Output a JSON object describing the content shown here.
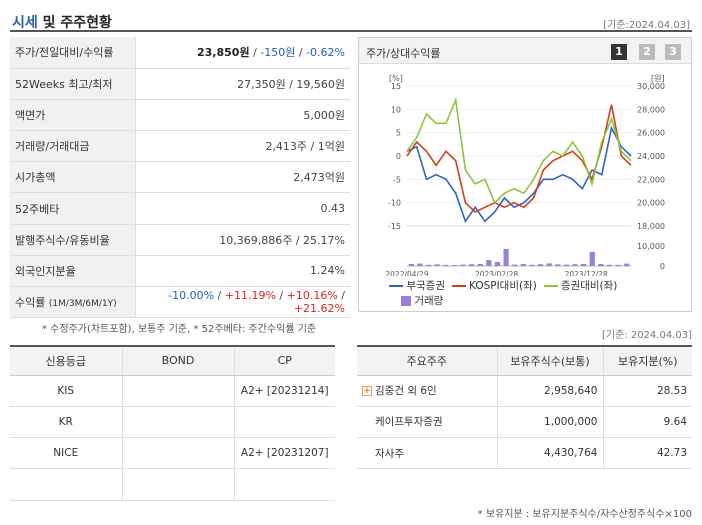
{
  "header": {
    "title_a": "시세",
    "title_b": " 및 주주현황",
    "base_date": "[기준:2024.04.03]"
  },
  "info": {
    "rows": [
      {
        "key": "주가/전일대비/수익률",
        "price": "23,850원",
        "sep1": " / ",
        "change": "-150원",
        "sep2": " / ",
        "pct": "-0.62%"
      },
      {
        "key": "52Weeks 최고/최저",
        "value": "27,350원 / 19,560원"
      },
      {
        "key": "액면가",
        "value": "5,000원"
      },
      {
        "key": "거래량/거래대금",
        "value": "2,413주 / 1억원"
      },
      {
        "key": "시가총액",
        "value": "2,473억원"
      },
      {
        "key": "52주베타",
        "value": "0.43"
      },
      {
        "key": "발행주식수/유동비율",
        "value": "10,369,886주 / 25.17%"
      },
      {
        "key": "외국인지분율",
        "value": "1.24%"
      },
      {
        "key": "수익률",
        "key_small": "(1M/3M/6M/1Y)",
        "r1": "-10.00%",
        "r2": "+11.19%",
        "r3": "+10.16%",
        "r4": "+21.62%",
        "slash": " / "
      }
    ],
    "note": "* 수정주가(차트포함), 보통주 기준, * 52주베타: 주간수익률 기준"
  },
  "chart_panel": {
    "title": "주가/상대수익률",
    "pages": [
      "1",
      "2",
      "3"
    ],
    "legend": {
      "s1": "부국증권",
      "s2": "KOSPI대비(좌)",
      "s3": "증권대비(좌)",
      "vol": "거래량"
    }
  },
  "chart_data": {
    "type": "line",
    "left_axis": {
      "unit": "[%]",
      "range": [
        -15,
        15
      ],
      "ticks": [
        "15",
        "10",
        "5",
        "0",
        "-5",
        "-10",
        "-15"
      ]
    },
    "right_axis": {
      "unit": "[원]",
      "range": [
        18000,
        30000
      ],
      "ticks": [
        "30,000",
        "28,000",
        "26,000",
        "24,000",
        "22,000",
        "20,000",
        "18,000"
      ]
    },
    "volume_axis": {
      "ticks": [
        "10,000",
        "0"
      ],
      "range": [
        0,
        10000
      ]
    },
    "x_ticks": [
      "2022/04/29",
      "2023/02/28",
      "2023/12/28"
    ],
    "x_tick_positions": [
      0,
      0.4,
      0.8
    ],
    "series": [
      {
        "name": "부국증권",
        "color": "#2a63c9",
        "values": [
          1,
          2,
          -5,
          -4,
          -5,
          -8,
          -14,
          -11,
          -14,
          -12,
          -9,
          -11,
          -10,
          -8,
          -5,
          -5,
          -4,
          -5,
          -7,
          -3,
          -4,
          6,
          2,
          0
        ]
      },
      {
        "name": "KOSPI대비(좌)",
        "color": "#d2401a",
        "values": [
          0,
          3,
          1,
          -2,
          1,
          -1,
          -10,
          -12,
          -11,
          -10,
          -11,
          -10,
          -11,
          -9,
          -3,
          -1,
          0,
          1,
          -1,
          -5,
          2,
          11,
          0,
          -2
        ]
      },
      {
        "name": "증권대비(좌)",
        "color": "#8cc43a",
        "values": [
          1,
          4,
          9,
          7,
          7,
          12,
          -3,
          -6,
          -5,
          -10,
          -8,
          -7,
          -8,
          -5,
          -1,
          1,
          0,
          3,
          0,
          -6,
          3,
          8,
          1,
          -1
        ]
      }
    ],
    "volume": {
      "name": "거래량",
      "color": "#9a7fd6",
      "values": [
        1000,
        1200,
        600,
        800,
        600,
        500,
        700,
        900,
        1000,
        3000,
        2000,
        8500,
        700,
        1000,
        600,
        900,
        1300,
        800,
        700,
        900,
        1000,
        7000,
        1000,
        600,
        600,
        1200
      ]
    }
  },
  "date2": "[기준: 2024.04.03]",
  "credit": {
    "headers": [
      "신용등급",
      "BOND",
      "CP"
    ],
    "rows": [
      [
        "KIS",
        "",
        "A2+ [20231214]"
      ],
      [
        "KR",
        "",
        ""
      ],
      [
        "NICE",
        "",
        "A2+ [20231207]"
      ],
      [
        "",
        "",
        ""
      ]
    ]
  },
  "holders": {
    "headers": [
      "주요주주",
      "보유주식수(보통)",
      "보유지분(%)"
    ],
    "rows": [
      [
        "김중건 외 6인",
        "2,958,640",
        "28.53"
      ],
      [
        "케이프투자증권",
        "1,000,000",
        "9.64"
      ],
      [
        "자사주",
        "4,430,764",
        "42.73"
      ]
    ],
    "note": "* 보유지분 : 보유지분주식수/자수산정주식수×100"
  }
}
